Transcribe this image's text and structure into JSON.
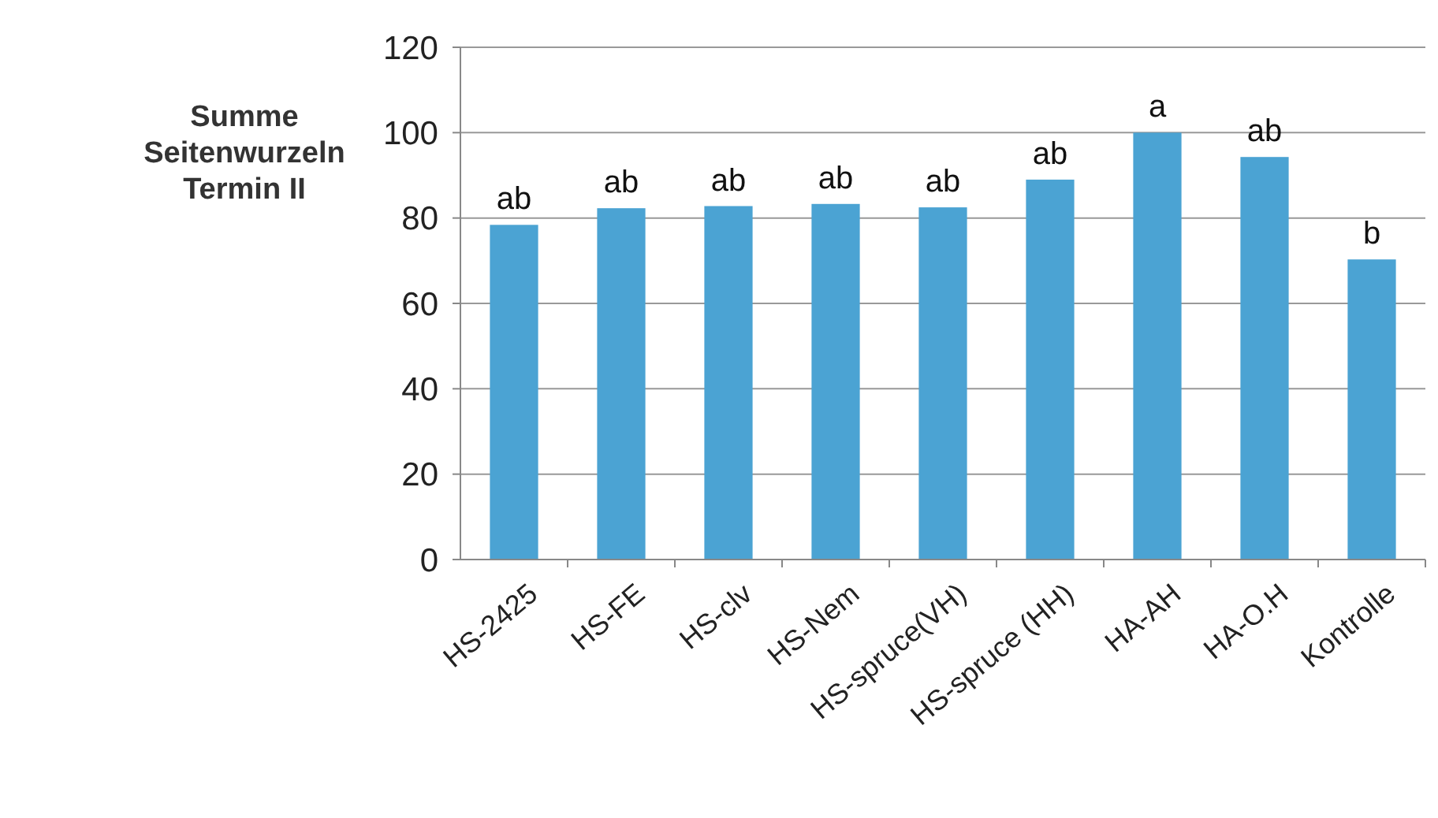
{
  "chart_data": {
    "type": "bar",
    "title": "Summe\nSeitenwurzeln\nTermin II",
    "categories": [
      "HS-2425",
      "HS-FE",
      "HS-clv",
      "HS-Nem",
      "HS-spruce(VH)",
      "HS-spruce (HH)",
      "HA-AH",
      "HA-O.H",
      "Kontrolle"
    ],
    "values": [
      78.4,
      82.3,
      82.8,
      83.3,
      82.5,
      89,
      100,
      94.3,
      70.3
    ],
    "color": "#4ba3d3",
    "ylim": [
      0,
      120
    ],
    "yticks": [
      0,
      20,
      40,
      60,
      80,
      100,
      120
    ],
    "grid": "y",
    "annotations": [
      {
        "text": "ab",
        "x": "HS-2425",
        "y": 78.4
      },
      {
        "text": "ab",
        "x": "HS-FE",
        "y": 82.3
      },
      {
        "text": "ab",
        "x": "HS-clv",
        "y": 82.8
      },
      {
        "text": "ab",
        "x": "HS-Nem",
        "y": 83.3
      },
      {
        "text": "ab",
        "x": "HS-spruce(VH)",
        "y": 82.5
      },
      {
        "text": "ab",
        "x": "HS-spruce (HH)",
        "y": 89
      },
      {
        "text": "a",
        "x": "HA-AH",
        "y": 100
      },
      {
        "text": "ab",
        "x": "HA-O.H",
        "y": 94.3
      },
      {
        "text": "b",
        "x": "Kontrolle",
        "y": 70.3
      }
    ]
  }
}
